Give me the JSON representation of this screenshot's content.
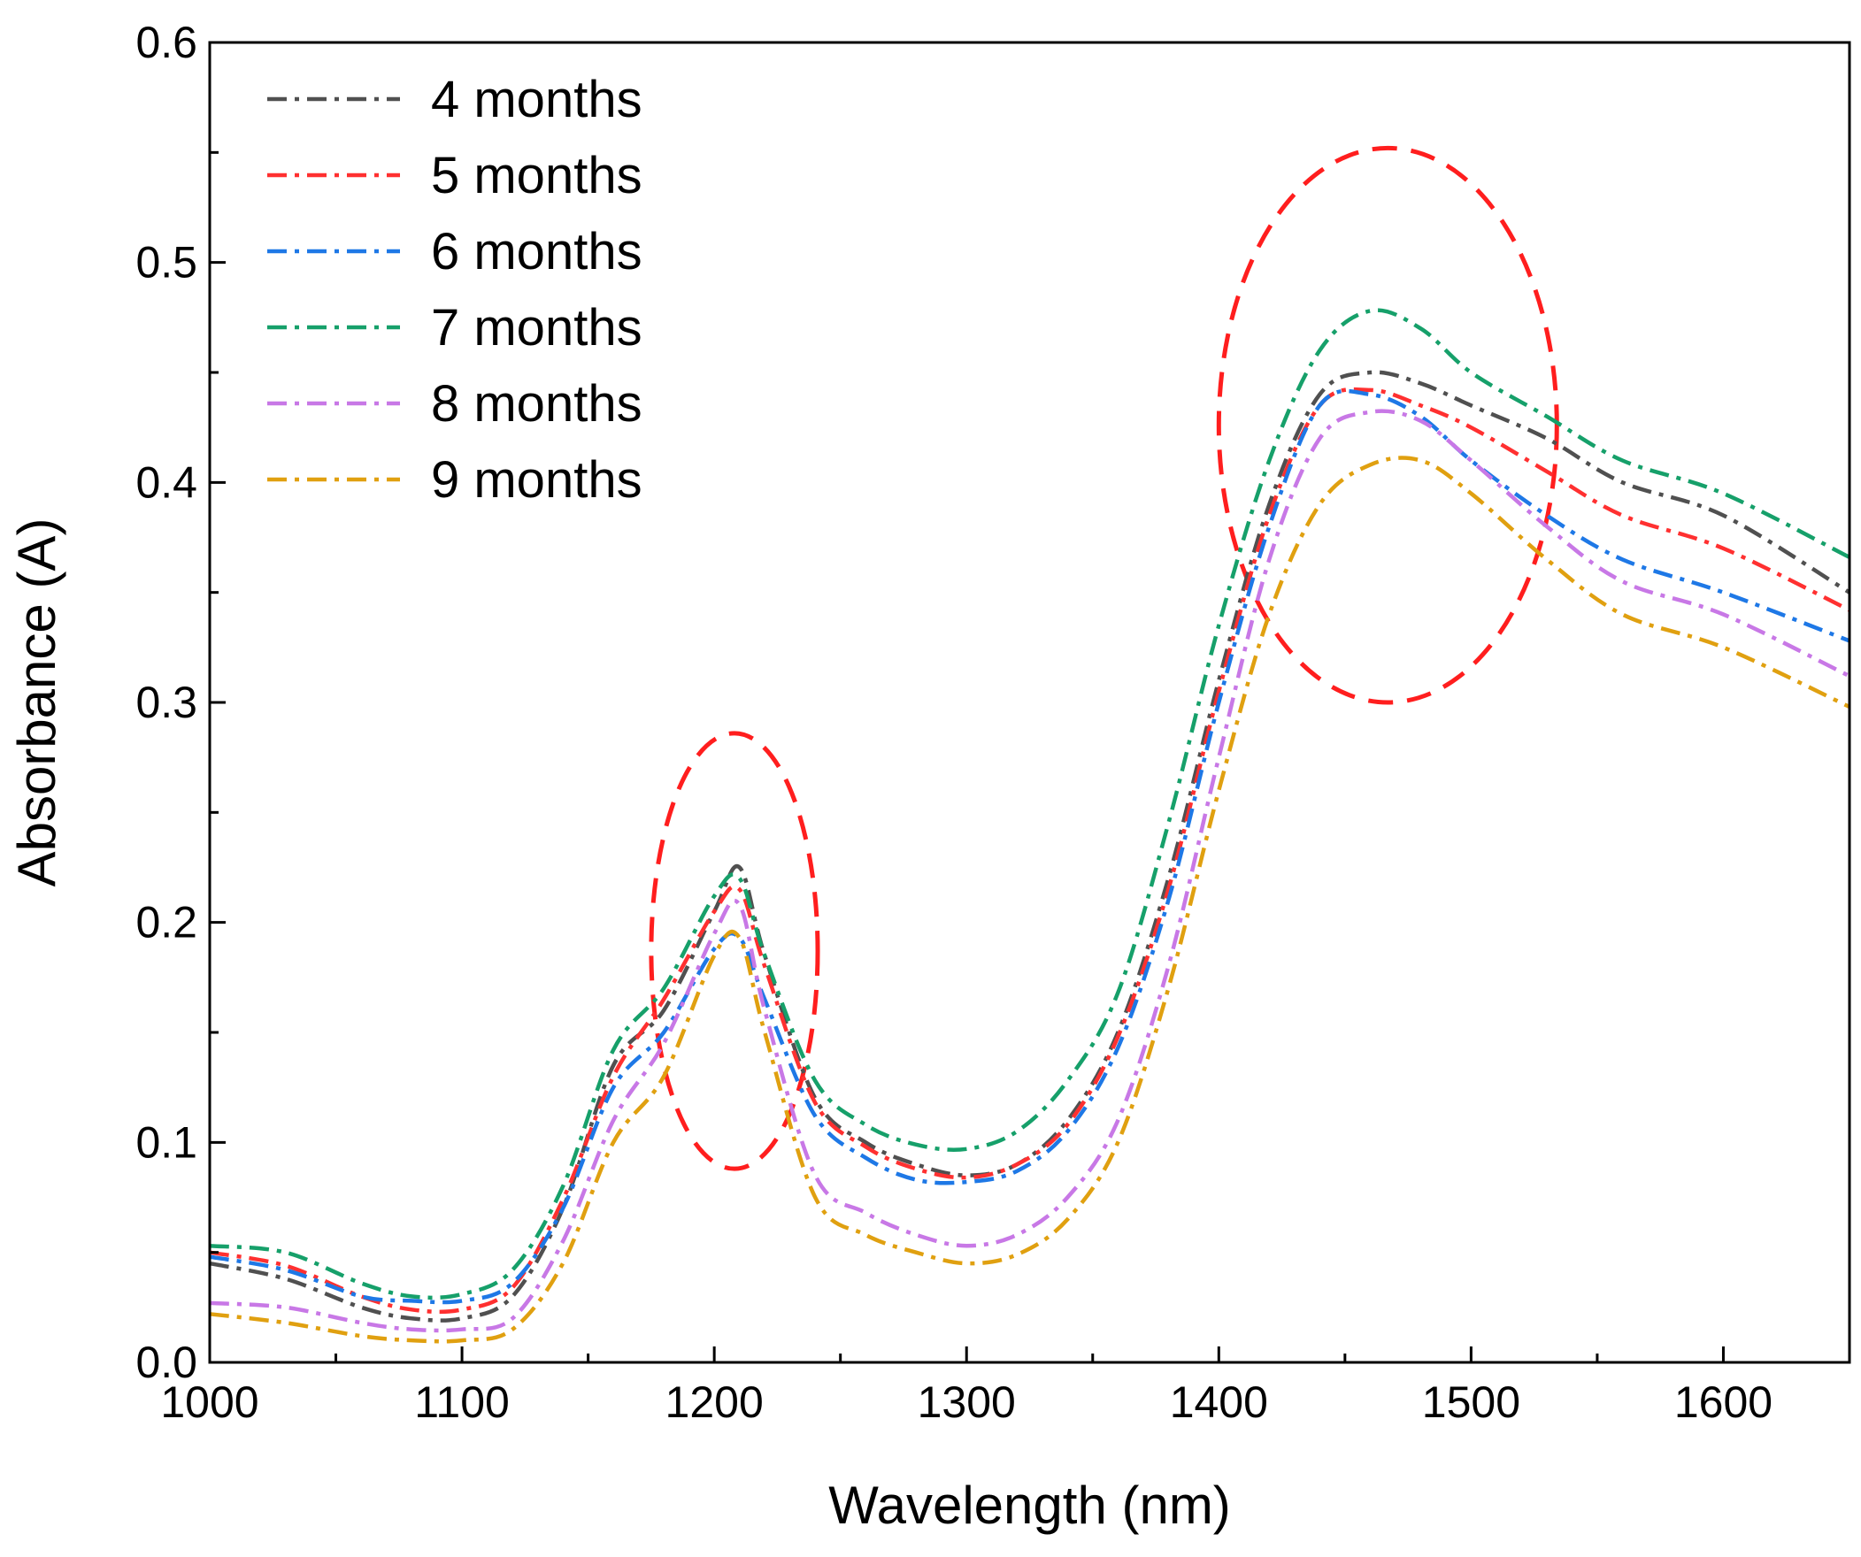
{
  "chart_data": {
    "type": "line",
    "title": "",
    "xlabel": "Wavelength (nm)",
    "ylabel": "Absorbance (A)",
    "xlim": [
      1000,
      1650
    ],
    "ylim": [
      0.0,
      0.6
    ],
    "x_ticks": [
      1000,
      1100,
      1200,
      1300,
      1400,
      1500,
      1600
    ],
    "x_tick_labels": [
      "1000",
      "1100",
      "1200",
      "1300",
      "1400",
      "1500",
      "1600"
    ],
    "y_ticks": [
      0.0,
      0.1,
      0.2,
      0.3,
      0.4,
      0.5,
      0.6
    ],
    "y_tick_labels": [
      "0.0",
      "0.1",
      "0.2",
      "0.3",
      "0.4",
      "0.5",
      "0.6"
    ],
    "grid": false,
    "legend_position": "top-left",
    "x": [
      1000,
      1030,
      1060,
      1080,
      1100,
      1120,
      1140,
      1160,
      1180,
      1200,
      1210,
      1220,
      1240,
      1260,
      1280,
      1300,
      1320,
      1340,
      1360,
      1380,
      1400,
      1420,
      1440,
      1460,
      1480,
      1500,
      1530,
      1560,
      1600,
      1650
    ],
    "series": [
      {
        "name": "4 months",
        "color": "#505050",
        "values": [
          0.045,
          0.038,
          0.025,
          0.02,
          0.02,
          0.03,
          0.07,
          0.135,
          0.16,
          0.205,
          0.225,
          0.185,
          0.12,
          0.1,
          0.09,
          0.085,
          0.09,
          0.11,
          0.15,
          0.22,
          0.31,
          0.39,
          0.44,
          0.45,
          0.445,
          0.435,
          0.42,
          0.4,
          0.385,
          0.35
        ]
      },
      {
        "name": "5 months",
        "color": "#ff3030",
        "values": [
          0.05,
          0.044,
          0.03,
          0.024,
          0.024,
          0.034,
          0.074,
          0.13,
          0.165,
          0.205,
          0.215,
          0.18,
          0.118,
          0.098,
          0.088,
          0.084,
          0.09,
          0.108,
          0.148,
          0.215,
          0.305,
          0.385,
          0.435,
          0.442,
          0.435,
          0.425,
          0.405,
          0.385,
          0.37,
          0.342
        ]
      },
      {
        "name": "6 months",
        "color": "#1e78e6",
        "values": [
          0.048,
          0.042,
          0.03,
          0.028,
          0.028,
          0.036,
          0.07,
          0.125,
          0.15,
          0.188,
          0.193,
          0.165,
          0.112,
          0.093,
          0.083,
          0.082,
          0.087,
          0.105,
          0.143,
          0.21,
          0.3,
          0.38,
          0.435,
          0.44,
          0.43,
          0.41,
          0.385,
          0.365,
          0.35,
          0.328
        ]
      },
      {
        "name": "7 months",
        "color": "#16a06a",
        "values": [
          0.053,
          0.05,
          0.036,
          0.03,
          0.031,
          0.042,
          0.08,
          0.142,
          0.17,
          0.212,
          0.22,
          0.185,
          0.128,
          0.108,
          0.099,
          0.097,
          0.105,
          0.128,
          0.168,
          0.245,
          0.335,
          0.41,
          0.46,
          0.478,
          0.47,
          0.45,
          0.43,
          0.41,
          0.395,
          0.366
        ]
      },
      {
        "name": "8 months",
        "color": "#c878e6",
        "values": [
          0.027,
          0.025,
          0.018,
          0.015,
          0.015,
          0.02,
          0.055,
          0.11,
          0.145,
          0.195,
          0.208,
          0.16,
          0.085,
          0.068,
          0.058,
          0.053,
          0.058,
          0.075,
          0.11,
          0.18,
          0.275,
          0.365,
          0.42,
          0.432,
          0.428,
          0.41,
          0.38,
          0.355,
          0.34,
          0.312
        ]
      },
      {
        "name": "9 months",
        "color": "#e0a010",
        "values": [
          0.022,
          0.018,
          0.012,
          0.01,
          0.01,
          0.015,
          0.045,
          0.1,
          0.13,
          0.185,
          0.193,
          0.15,
          0.075,
          0.058,
          0.05,
          0.045,
          0.049,
          0.065,
          0.1,
          0.17,
          0.26,
          0.34,
          0.39,
          0.408,
          0.41,
          0.395,
          0.365,
          0.34,
          0.325,
          0.298
        ]
      }
    ],
    "annotations": [
      {
        "type": "dashed-ellipse",
        "color": "#ff1e1e",
        "center": [
          1208,
          0.187
        ],
        "radius_x": 33,
        "radius_y": 0.099
      },
      {
        "type": "dashed-ellipse",
        "color": "#ff1e1e",
        "center": [
          1467,
          0.426
        ],
        "radius_x": 67,
        "radius_y": 0.126
      }
    ]
  }
}
